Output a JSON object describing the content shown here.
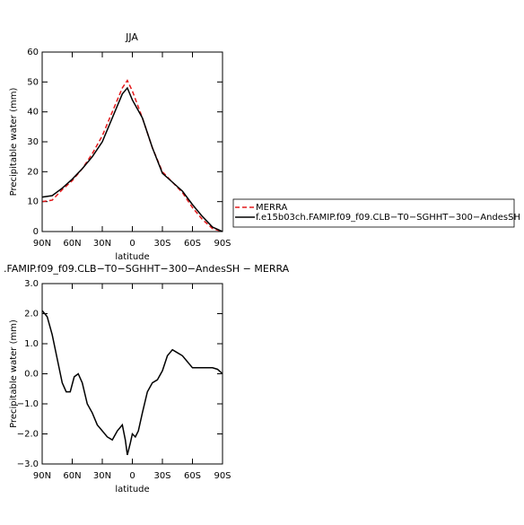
{
  "chart_data": [
    {
      "type": "line",
      "title": "JJA",
      "x_label": "latitude",
      "y_label": "Precipitable water (mm)",
      "x": [
        90,
        80,
        70,
        60,
        50,
        40,
        30,
        20,
        10,
        5,
        0,
        -10,
        -20,
        -30,
        -40,
        -50,
        -60,
        -70,
        -80,
        -90
      ],
      "series": [
        {
          "name": "MERRA",
          "color": "#e41a1c",
          "linestyle": "dashed",
          "values": [
            10,
            10.5,
            14,
            17,
            21,
            26,
            32,
            40,
            48,
            50.5,
            47,
            38,
            28,
            20,
            16.5,
            13,
            8,
            4,
            1,
            0
          ]
        },
        {
          "name": "f.e15b03ch.FAMIP.f09_f09.CLB−T0−SGHHT−300−AndesSH",
          "color": "#000000",
          "linestyle": "solid",
          "values": [
            11.5,
            12,
            14.5,
            17.5,
            21,
            25,
            30,
            38,
            46,
            48,
            44,
            38,
            28,
            19.5,
            16.5,
            13.5,
            9,
            5,
            1.5,
            0
          ]
        }
      ],
      "xlim": [
        90,
        -90
      ],
      "xticks": [
        {
          "value": 90,
          "label": "90N"
        },
        {
          "value": 60,
          "label": "60N"
        },
        {
          "value": 30,
          "label": "30N"
        },
        0,
        {
          "value": -30,
          "label": "30S"
        },
        {
          "value": -60,
          "label": "60S"
        },
        {
          "value": -90,
          "label": "90S"
        }
      ],
      "ylim": [
        0,
        60
      ],
      "yticks": [
        0,
        10,
        20,
        30,
        40,
        50,
        60
      ],
      "legend": "right"
    },
    {
      "type": "line",
      "title": ".FAMIP.f09_f09.CLB−T0−SGHHT−300−AndesSH − MERRA",
      "x_label": "latitude",
      "y_label": "Precipitable water (mm)",
      "x": [
        90,
        85,
        80,
        75,
        70,
        66,
        62,
        58,
        54,
        50,
        45,
        40,
        35,
        30,
        25,
        20,
        15,
        10,
        7,
        5,
        2,
        0,
        -3,
        -6,
        -10,
        -15,
        -20,
        -25,
        -30,
        -35,
        -40,
        -45,
        -50,
        -55,
        -60,
        -70,
        -80,
        -85,
        -90
      ],
      "series": [
        {
          "color": "#000000",
          "linestyle": "solid",
          "values": [
            2.1,
            1.9,
            1.3,
            0.5,
            -0.3,
            -0.6,
            -0.6,
            -0.1,
            0.0,
            -0.3,
            -1.0,
            -1.3,
            -1.7,
            -1.9,
            -2.1,
            -2.2,
            -1.9,
            -1.7,
            -2.2,
            -2.7,
            -2.3,
            -2.0,
            -2.1,
            -1.9,
            -1.3,
            -0.6,
            -0.3,
            -0.2,
            0.1,
            0.6,
            0.8,
            0.7,
            0.6,
            0.4,
            0.2,
            0.2,
            0.2,
            0.15,
            0.0
          ]
        }
      ],
      "xlim": [
        90,
        -90
      ],
      "xticks": [
        {
          "value": 90,
          "label": "90N"
        },
        {
          "value": 60,
          "label": "60N"
        },
        {
          "value": 30,
          "label": "30N"
        },
        0,
        {
          "value": -30,
          "label": "30S"
        },
        {
          "value": -60,
          "label": "60S"
        },
        {
          "value": -90,
          "label": "90S"
        }
      ],
      "ylim": [
        -3,
        3
      ],
      "yticks": [
        {
          "value": -3,
          "label": "−3.0"
        },
        {
          "value": -2,
          "label": "−2.0"
        },
        {
          "value": -1,
          "label": "−1.0"
        },
        {
          "value": 0,
          "label": "0.0"
        },
        {
          "value": 1,
          "label": "1.0"
        },
        {
          "value": 2,
          "label": "2.0"
        },
        {
          "value": 3,
          "label": "3.0"
        }
      ]
    }
  ]
}
